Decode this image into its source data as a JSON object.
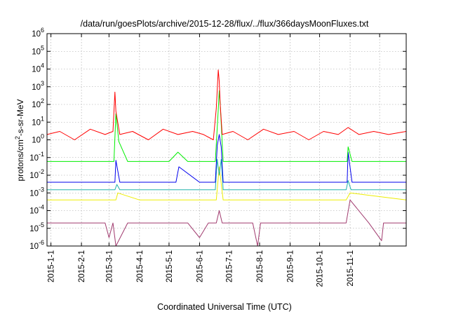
{
  "chart_data": {
    "type": "line",
    "title": "/data/run/goesPlots/archive/2015-12-28/flux/../flux/366daysMoonFluxes.txt",
    "xlabel": "Coordinated Universal Time (UTC)",
    "ylabel_parts": {
      "base": "protons/cm",
      "sup": "2",
      "rest": "-s-sr-MeV"
    },
    "x_range": [
      "2014-12-28",
      "2015-12-28"
    ],
    "y_scale": "log",
    "ylim": [
      1e-06,
      1000000.0
    ],
    "grid": true,
    "x_ticks": [
      {
        "date": "2015-01-01",
        "label": "2015-1-1"
      },
      {
        "date": "2015-02-01",
        "label": "2015-2-1"
      },
      {
        "date": "2015-03-01",
        "label": "2015-3-1"
      },
      {
        "date": "2015-04-01",
        "label": "2015-4-1"
      },
      {
        "date": "2015-05-01",
        "label": "2015-5-1"
      },
      {
        "date": "2015-06-01",
        "label": "2015-6-1"
      },
      {
        "date": "2015-07-01",
        "label": "2015-7-1"
      },
      {
        "date": "2015-08-01",
        "label": "2015-8-1"
      },
      {
        "date": "2015-09-01",
        "label": "2015-9-1"
      },
      {
        "date": "2015-10-01",
        "label": "2015-10-1"
      },
      {
        "date": "2015-11-01",
        "label": "2015-11-1"
      },
      {
        "date": "2015-12-01",
        "label": ""
      }
    ],
    "y_ticks": [
      {
        "value": 1e-06,
        "base": "10",
        "exp": "-6"
      },
      {
        "value": 1e-05,
        "base": "10",
        "exp": "-5"
      },
      {
        "value": 0.0001,
        "base": "10",
        "exp": "-4"
      },
      {
        "value": 0.001,
        "base": "10",
        "exp": "-3"
      },
      {
        "value": 0.01,
        "base": "10",
        "exp": "-2"
      },
      {
        "value": 0.1,
        "base": "10",
        "exp": "-1"
      },
      {
        "value": 1,
        "base": "10",
        "exp": "0"
      },
      {
        "value": 10.0,
        "base": "10",
        "exp": "1"
      },
      {
        "value": 100.0,
        "base": "10",
        "exp": "2"
      },
      {
        "value": 1000.0,
        "base": "10",
        "exp": "3"
      },
      {
        "value": 10000.0,
        "base": "10",
        "exp": "4"
      },
      {
        "value": 100000.0,
        "base": "10",
        "exp": "5"
      },
      {
        "value": 1000000.0,
        "base": "10",
        "exp": "6"
      }
    ],
    "series": [
      {
        "color": "#a03a6e",
        "x": [
          "2014-12-28",
          "2015-01-15",
          "2015-02-01",
          "2015-02-25",
          "2015-03-01",
          "2015-03-05",
          "2015-03-08",
          "2015-03-20",
          "2015-04-10",
          "2015-05-01",
          "2015-05-20",
          "2015-06-01",
          "2015-06-10",
          "2015-06-18",
          "2015-06-21",
          "2015-06-24",
          "2015-07-05",
          "2015-07-25",
          "2015-07-30",
          "2015-08-02",
          "2015-08-20",
          "2015-09-15",
          "2015-10-10",
          "2015-10-28",
          "2015-11-01",
          "2015-11-20",
          "2015-12-03",
          "2015-12-05",
          "2015-12-28"
        ],
        "y": [
          2e-05,
          2e-05,
          2e-05,
          2e-05,
          3e-06,
          2e-05,
          1e-06,
          2e-05,
          2e-05,
          2e-05,
          2e-05,
          3e-06,
          2e-05,
          2e-05,
          0.0001,
          2e-05,
          2e-05,
          2e-05,
          1e-06,
          2e-05,
          2e-05,
          2e-05,
          2e-05,
          2e-05,
          0.0004,
          2e-05,
          2e-06,
          2e-05,
          2e-05
        ]
      },
      {
        "color": "#eded00",
        "x": [
          "2014-12-28",
          "2015-02-01",
          "2015-03-08",
          "2015-03-10",
          "2015-04-01",
          "2015-05-01",
          "2015-06-01",
          "2015-06-18",
          "2015-06-21",
          "2015-06-25",
          "2015-08-01",
          "2015-09-01",
          "2015-10-01",
          "2015-10-28",
          "2015-11-01",
          "2015-12-28"
        ],
        "y": [
          0.0004,
          0.0004,
          0.0004,
          0.001,
          0.0004,
          0.0004,
          0.0004,
          0.0004,
          0.03,
          0.0004,
          0.0004,
          0.0004,
          0.0004,
          0.0004,
          0.001,
          0.0004
        ]
      },
      {
        "color": "#20b2aa",
        "x": [
          "2014-12-28",
          "2015-02-01",
          "2015-03-07",
          "2015-03-09",
          "2015-03-12",
          "2015-04-15",
          "2015-05-15",
          "2015-06-10",
          "2015-06-17",
          "2015-06-19",
          "2015-06-21",
          "2015-06-23",
          "2015-06-25",
          "2015-07-01",
          "2015-08-01",
          "2015-09-01",
          "2015-10-01",
          "2015-10-28",
          "2015-10-30",
          "2015-11-02",
          "2015-12-28"
        ],
        "y": [
          0.0015,
          0.0015,
          0.0015,
          0.003,
          0.0015,
          0.0015,
          0.0015,
          0.0015,
          0.0015,
          0.08,
          0.01,
          0.08,
          0.0015,
          0.0015,
          0.0015,
          0.0015,
          0.0015,
          0.0015,
          0.005,
          0.0015,
          0.0015
        ]
      },
      {
        "color": "#0000ee",
        "x": [
          "2014-12-28",
          "2015-01-20",
          "2015-02-10",
          "2015-03-07",
          "2015-03-08",
          "2015-03-12",
          "2015-03-20",
          "2015-04-10",
          "2015-05-01",
          "2015-05-08",
          "2015-05-11",
          "2015-06-01",
          "2015-06-17",
          "2015-06-19",
          "2015-06-21",
          "2015-06-23",
          "2015-06-25",
          "2015-07-01",
          "2015-08-01",
          "2015-09-01",
          "2015-10-01",
          "2015-10-29",
          "2015-10-30",
          "2015-11-03",
          "2015-12-28"
        ],
        "y": [
          0.004,
          0.004,
          0.004,
          0.004,
          0.07,
          0.004,
          0.004,
          0.004,
          0.004,
          0.004,
          0.03,
          0.004,
          0.004,
          0.5,
          2.0,
          0.4,
          0.004,
          0.004,
          0.004,
          0.004,
          0.004,
          0.004,
          0.2,
          0.004,
          0.004
        ]
      },
      {
        "color": "#00ee00",
        "x": [
          "2014-12-28",
          "2015-01-15",
          "2015-02-10",
          "2015-03-06",
          "2015-03-08",
          "2015-03-11",
          "2015-03-20",
          "2015-04-10",
          "2015-05-01",
          "2015-05-10",
          "2015-05-20",
          "2015-06-01",
          "2015-06-17",
          "2015-06-20",
          "2015-06-21",
          "2015-06-22",
          "2015-06-25",
          "2015-07-01",
          "2015-08-01",
          "2015-09-01",
          "2015-10-01",
          "2015-10-29",
          "2015-10-30",
          "2015-11-03",
          "2015-12-28"
        ],
        "y": [
          0.06,
          0.06,
          0.06,
          0.06,
          30.0,
          0.8,
          0.06,
          0.06,
          0.06,
          0.2,
          0.06,
          0.06,
          0.06,
          50.0,
          600.0,
          100.0,
          0.06,
          0.06,
          0.06,
          0.06,
          0.06,
          0.06,
          0.4,
          0.06,
          0.06
        ]
      },
      {
        "color": "#ff0000",
        "x": [
          "2014-12-28",
          "2015-01-10",
          "2015-01-25",
          "2015-02-10",
          "2015-02-25",
          "2015-03-05",
          "2015-03-07",
          "2015-03-08",
          "2015-03-12",
          "2015-03-25",
          "2015-04-10",
          "2015-04-25",
          "2015-05-10",
          "2015-05-25",
          "2015-06-05",
          "2015-06-15",
          "2015-06-18",
          "2015-06-20",
          "2015-06-21",
          "2015-06-22",
          "2015-06-24",
          "2015-07-05",
          "2015-07-20",
          "2015-08-05",
          "2015-08-20",
          "2015-09-05",
          "2015-09-20",
          "2015-10-05",
          "2015-10-20",
          "2015-10-30",
          "2015-11-10",
          "2015-11-25",
          "2015-12-10",
          "2015-12-28"
        ],
        "y": [
          2.0,
          3.0,
          1.0,
          4.0,
          2.0,
          3.0,
          500.0,
          40.0,
          2.0,
          3.0,
          1.0,
          4.0,
          2.0,
          3.0,
          2.0,
          1.0,
          60.0,
          9000.0,
          2000.0,
          100.0,
          2.0,
          3.0,
          1.0,
          4.0,
          2.0,
          3.0,
          1.0,
          3.0,
          2.0,
          5.0,
          2.0,
          3.0,
          2.0,
          3.0
        ]
      }
    ]
  }
}
